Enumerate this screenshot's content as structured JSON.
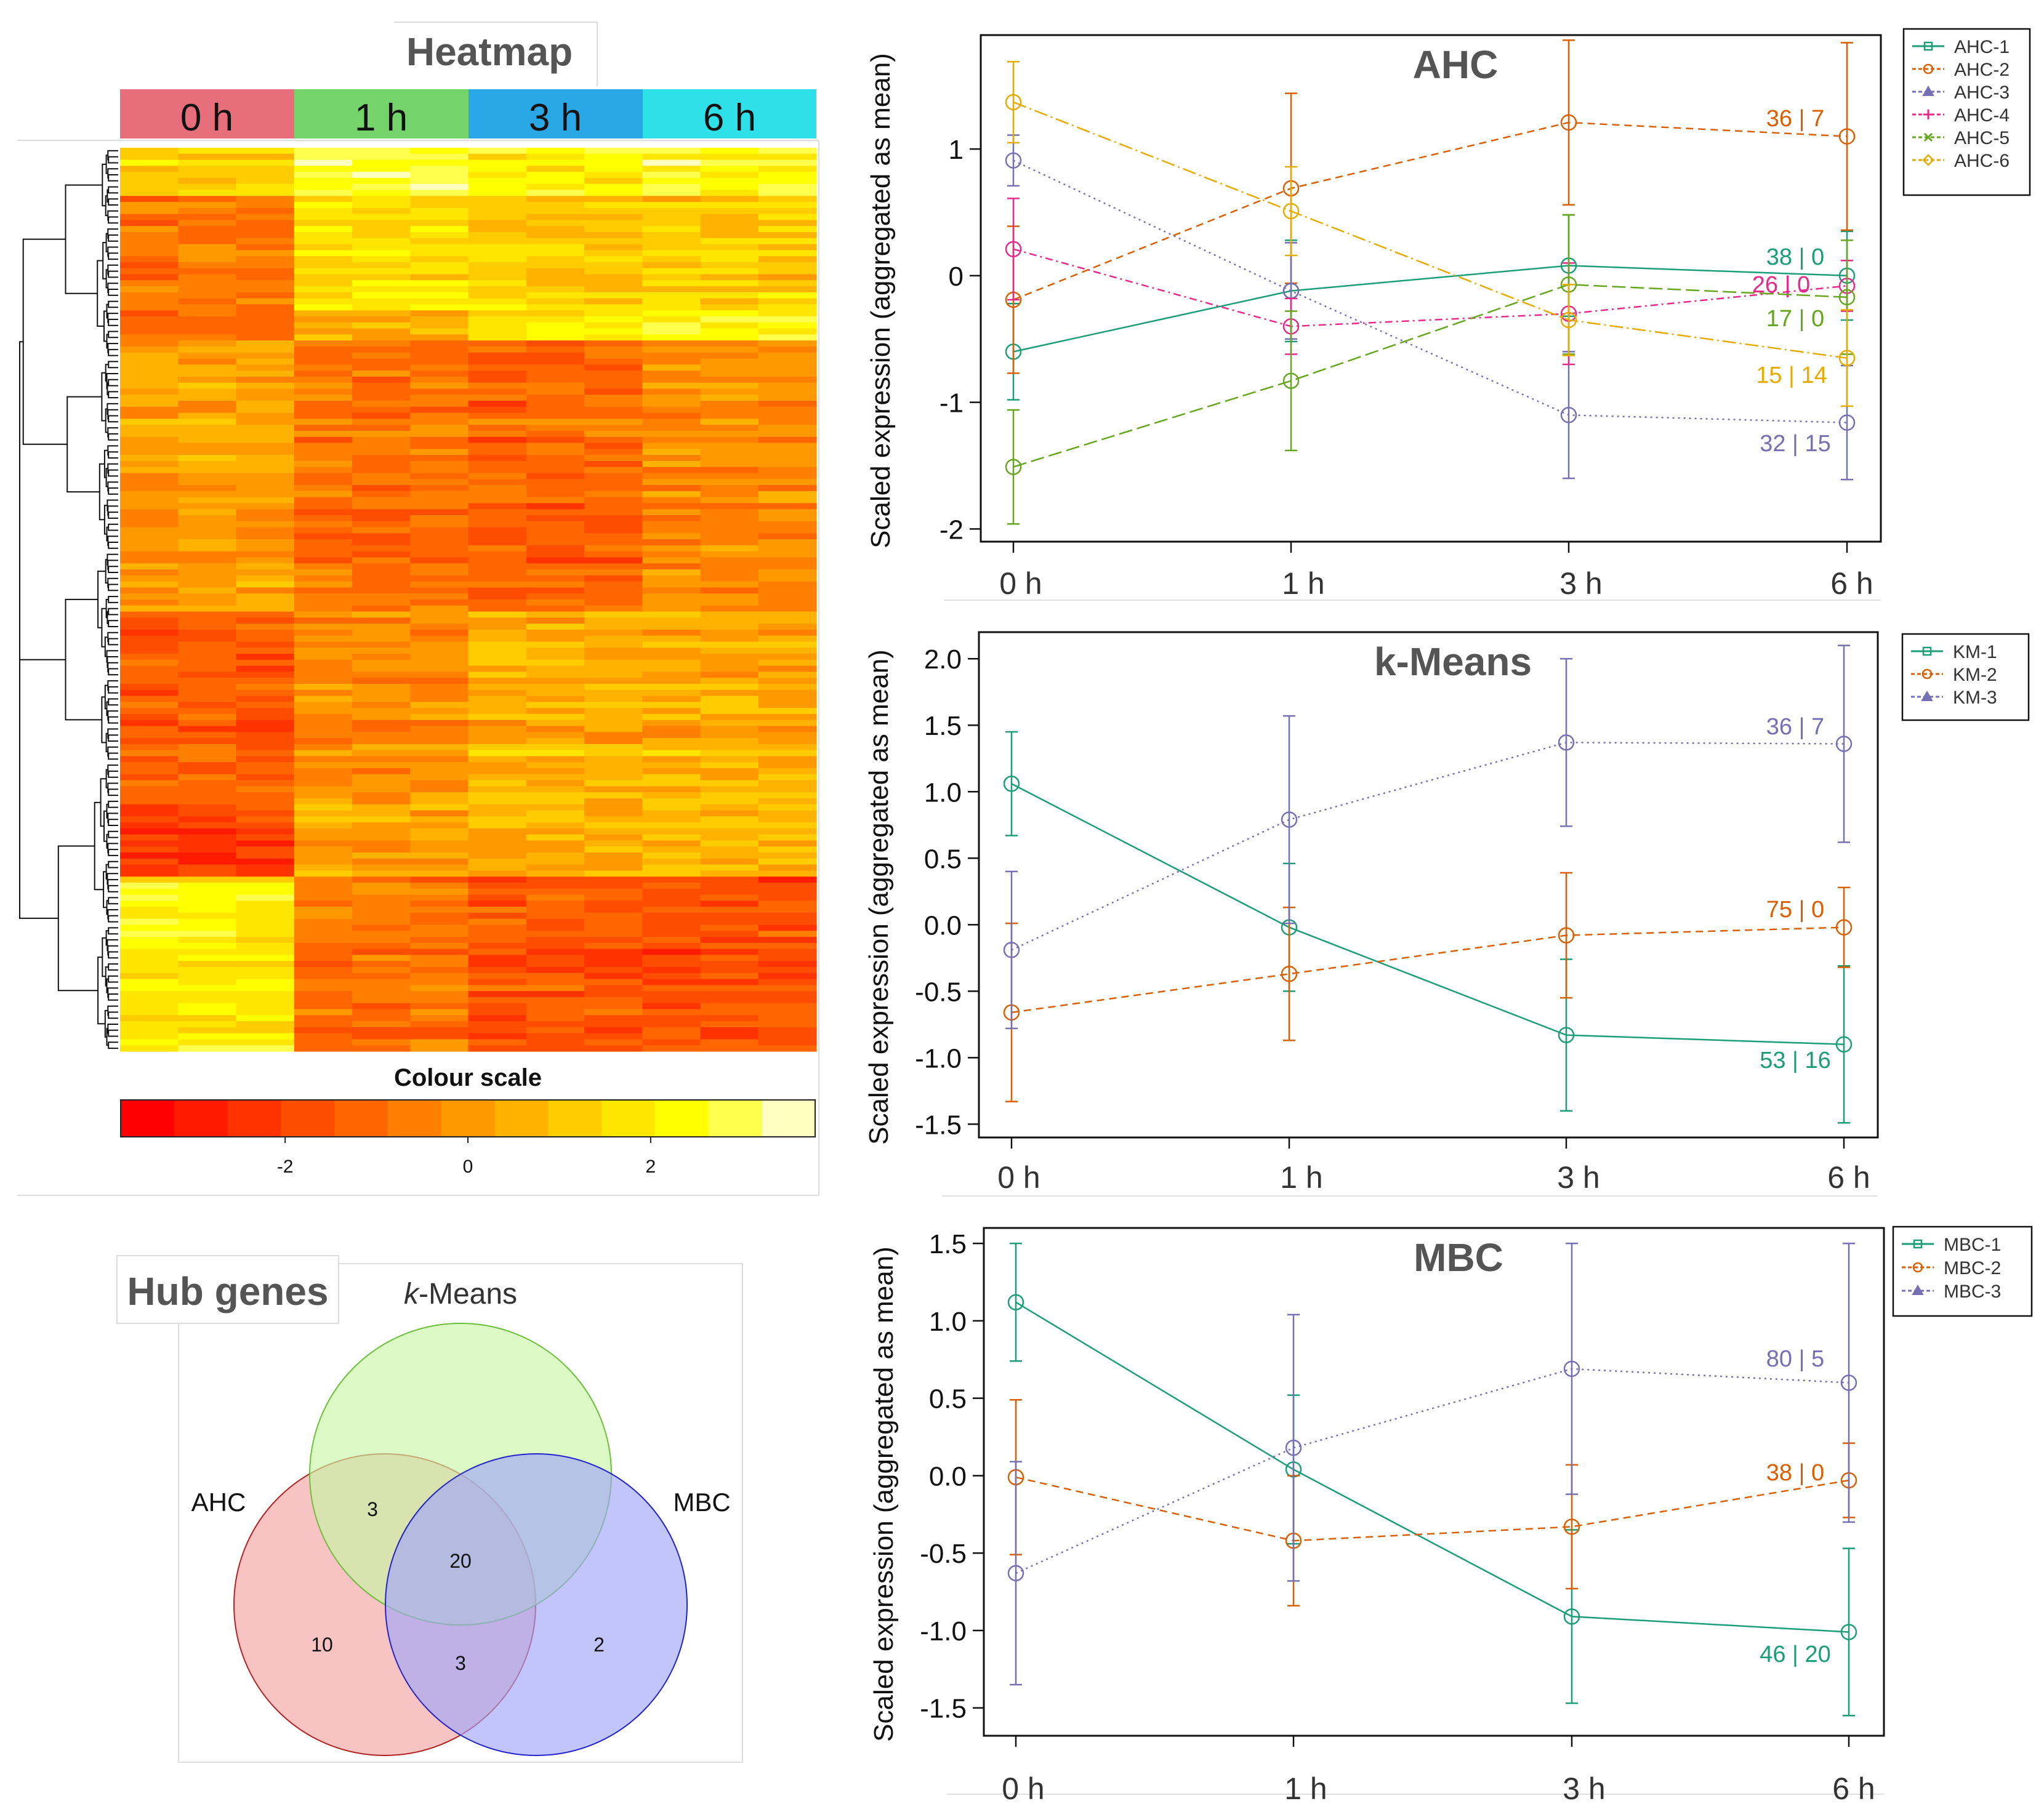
{
  "heatmap": {
    "title": "Heatmap",
    "timepoints": [
      "0 h",
      "1 h",
      "3 h",
      "6 h"
    ],
    "timepoint_colors": [
      "#e76f7b",
      "#74d36b",
      "#2aa7e5",
      "#2ee1e8"
    ],
    "colour_scale": {
      "title": "Colour scale",
      "ticks": [
        {
          "value": -2,
          "label": "-2"
        },
        {
          "value": 0,
          "label": "0"
        },
        {
          "value": 2,
          "label": "2"
        }
      ],
      "range": [
        -3.8,
        3.8
      ],
      "colors": [
        "#ff0000",
        "#ff1a00",
        "#ff3300",
        "#ff4d00",
        "#ff6600",
        "#ff8000",
        "#ff9900",
        "#ffb300",
        "#ffcc00",
        "#ffe600",
        "#ffff00",
        "#ffff4d",
        "#ffffbf"
      ]
    },
    "n_genes": 150,
    "n_samples": 12
  },
  "venn": {
    "title": "Hub genes",
    "sets": [
      {
        "label": "AHC",
        "color": "#f4a3a3",
        "border": "#b22222"
      },
      {
        "label": "-Means",
        "italic_prefix": "k",
        "color": "#c8f5a6",
        "border": "#6bbf3a"
      },
      {
        "label": "MBC",
        "color": "#9fa6f7",
        "border": "#2222cc"
      }
    ],
    "regions": [
      {
        "name": "AHC only",
        "value": "10"
      },
      {
        "name": "k-Means only",
        "value": ""
      },
      {
        "name": "MBC only",
        "value": "2"
      },
      {
        "name": "AHC and k-Means",
        "value": "3"
      },
      {
        "name": "AHC and MBC",
        "value": "3"
      },
      {
        "name": "k-Means and MBC",
        "value": ""
      },
      {
        "name": "all three",
        "value": "20"
      }
    ]
  },
  "chart_data": [
    {
      "type": "line",
      "title": "AHC",
      "xlabel": "",
      "ylabel": "Scaled expression (aggregated as mean)",
      "categories": [
        "0 h",
        "1 h",
        "3 h",
        "6 h"
      ],
      "ylim": [
        -2.1,
        1.9
      ],
      "yticks": [
        {
          "v": -2,
          "l": "-2"
        },
        {
          "v": -1,
          "l": "-1"
        },
        {
          "v": 0,
          "l": "0"
        },
        {
          "v": 1,
          "l": "1"
        }
      ],
      "series": [
        {
          "name": "AHC-1",
          "color": "#1b9e77",
          "dash": "",
          "marker": "square",
          "values": [
            -0.6,
            -0.12,
            0.08,
            0.0
          ],
          "err": [
            0.38,
            0.4,
            0.4,
            0.35
          ],
          "label": "38 | 0"
        },
        {
          "name": "AHC-2",
          "color": "#d95f02",
          "dash": "12 8",
          "marker": "circle",
          "values": [
            -0.19,
            0.69,
            1.21,
            1.1
          ],
          "err": [
            0.58,
            0.75,
            0.65,
            0.74
          ],
          "label": "36 | 7"
        },
        {
          "name": "AHC-3",
          "color": "#7570b3",
          "dash": "3 6",
          "marker": "triangle",
          "values": [
            0.91,
            -0.12,
            -1.1,
            -1.16
          ],
          "err": [
            0.2,
            0.38,
            0.5,
            0.45
          ],
          "label": "32 | 15"
        },
        {
          "name": "AHC-4",
          "color": "#e7298a",
          "dash": "12 6 3 6",
          "marker": "plus",
          "values": [
            0.21,
            -0.4,
            -0.3,
            -0.08
          ],
          "err": [
            0.4,
            0.22,
            0.4,
            0.2
          ],
          "label": "26 | 0"
        },
        {
          "name": "AHC-5",
          "color": "#66a61e",
          "dash": "22 8",
          "marker": "cross",
          "values": [
            -1.51,
            -0.83,
            -0.07,
            -0.17
          ],
          "err": [
            0.45,
            0.55,
            0.55,
            0.45
          ],
          "label": "17 | 0"
        },
        {
          "name": "AHC-6",
          "color": "#e6ab02",
          "dash": "22 6 3 6",
          "marker": "diamond",
          "values": [
            1.37,
            0.51,
            -0.35,
            -0.65
          ],
          "err": [
            0.32,
            0.35,
            0.28,
            0.38
          ],
          "label": "15 | 14"
        }
      ]
    },
    {
      "type": "line",
      "title": "k-Means",
      "xlabel": "",
      "ylabel": "Scaled expression (aggregated as mean)",
      "categories": [
        "0 h",
        "1 h",
        "3 h",
        "6 h"
      ],
      "ylim": [
        -1.6,
        2.2
      ],
      "yticks": [
        {
          "v": -1.5,
          "l": "-1.5"
        },
        {
          "v": -1.0,
          "l": "-1.0"
        },
        {
          "v": -0.5,
          "l": "-0.5"
        },
        {
          "v": 0.0,
          "l": "0.0"
        },
        {
          "v": 0.5,
          "l": "0.5"
        },
        {
          "v": 1.0,
          "l": "1.0"
        },
        {
          "v": 1.5,
          "l": "1.5"
        },
        {
          "v": 2.0,
          "l": "2.0"
        }
      ],
      "series": [
        {
          "name": "KM-1",
          "color": "#1b9e77",
          "dash": "",
          "marker": "square",
          "values": [
            1.06,
            -0.02,
            -0.83,
            -0.9
          ],
          "err": [
            0.39,
            0.48,
            0.57,
            0.59
          ],
          "label": "53 | 16"
        },
        {
          "name": "KM-2",
          "color": "#d95f02",
          "dash": "12 8",
          "marker": "circle",
          "values": [
            -0.66,
            -0.37,
            -0.08,
            -0.02
          ],
          "err": [
            0.67,
            0.5,
            0.47,
            0.3
          ],
          "label": "75 | 0"
        },
        {
          "name": "KM-3",
          "color": "#7570b3",
          "dash": "3 6",
          "marker": "triangle",
          "values": [
            -0.19,
            0.79,
            1.37,
            1.36
          ],
          "err": [
            0.59,
            0.78,
            0.63,
            0.74
          ],
          "label": "36 | 7"
        }
      ]
    },
    {
      "type": "line",
      "title": "MBC",
      "xlabel": "",
      "ylabel": "Scaled expression (aggregated as mean)",
      "categories": [
        "0 h",
        "1 h",
        "3 h",
        "6 h"
      ],
      "ylim": [
        -1.68,
        1.6
      ],
      "yticks": [
        {
          "v": -1.5,
          "l": "-1.5"
        },
        {
          "v": -1.0,
          "l": "-1.0"
        },
        {
          "v": -0.5,
          "l": "-0.5"
        },
        {
          "v": 0.0,
          "l": "0.0"
        },
        {
          "v": 0.5,
          "l": "0.5"
        },
        {
          "v": 1.0,
          "l": "1.0"
        },
        {
          "v": 1.5,
          "l": "1.5"
        }
      ],
      "series": [
        {
          "name": "MBC-1",
          "color": "#1b9e77",
          "dash": "",
          "marker": "square",
          "values": [
            1.12,
            0.04,
            -0.91,
            -1.01
          ],
          "err": [
            0.38,
            0.48,
            0.56,
            0.54
          ],
          "label": "46 | 20"
        },
        {
          "name": "MBC-2",
          "color": "#d95f02",
          "dash": "12 8",
          "marker": "circle",
          "values": [
            -0.01,
            -0.42,
            -0.33,
            -0.03
          ],
          "err": [
            0.5,
            0.42,
            0.4,
            0.24
          ],
          "label": "38 | 0"
        },
        {
          "name": "MBC-3",
          "color": "#7570b3",
          "dash": "3 6",
          "marker": "triangle",
          "values": [
            -0.63,
            0.18,
            0.69,
            0.6
          ],
          "err": [
            0.72,
            0.86,
            0.81,
            0.9
          ],
          "label": "80 | 5"
        }
      ]
    }
  ]
}
